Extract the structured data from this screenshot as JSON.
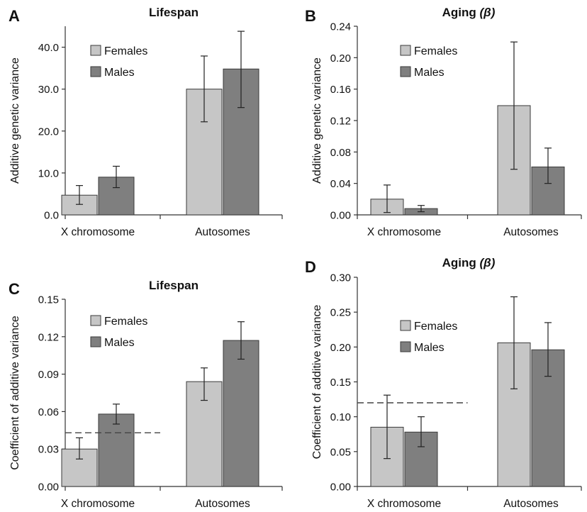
{
  "chart_data": [
    {
      "panel": "A",
      "type": "bar",
      "title": "Lifespan",
      "ylabel": "Additive genetic variance",
      "categories": [
        "X chromosome",
        "Autosomes"
      ],
      "ylim": [
        0,
        45
      ],
      "yticks": [
        0.0,
        10.0,
        20.0,
        30.0,
        40.0
      ],
      "ytick_labels": [
        "0.0",
        "10.0",
        "20.0",
        "30.0",
        "40.0"
      ],
      "series": [
        {
          "name": "Females",
          "color": "#c6c6c6",
          "values": [
            4.7,
            30.0
          ],
          "err_low": [
            2.5,
            22.2
          ],
          "err_high": [
            7.0,
            37.9
          ]
        },
        {
          "name": "Males",
          "color": "#7f7f7f",
          "values": [
            9.0,
            34.8
          ],
          "err_low": [
            6.5,
            25.6
          ],
          "err_high": [
            11.6,
            43.8
          ]
        }
      ],
      "legend": "top-left",
      "ref_line": null
    },
    {
      "panel": "B",
      "type": "bar",
      "title_main": "Aging",
      "title_greek": "(β)",
      "ylabel": "Additive genetic variance",
      "categories": [
        "X chromosome",
        "Autosomes"
      ],
      "ylim": [
        0,
        0.24
      ],
      "yticks": [
        0.0,
        0.04,
        0.08,
        0.12,
        0.16,
        0.2,
        0.24
      ],
      "ytick_labels": [
        "0.00",
        "0.04",
        "0.08",
        "0.12",
        "0.16",
        "0.20",
        "0.24"
      ],
      "series": [
        {
          "name": "Females",
          "color": "#c6c6c6",
          "values": [
            0.02,
            0.139
          ],
          "err_low": [
            0.003,
            0.058
          ],
          "err_high": [
            0.038,
            0.22
          ]
        },
        {
          "name": "Males",
          "color": "#7f7f7f",
          "values": [
            0.008,
            0.061
          ],
          "err_low": [
            0.004,
            0.04
          ],
          "err_high": [
            0.012,
            0.085
          ]
        }
      ],
      "legend": "top-left",
      "ref_line": null
    },
    {
      "panel": "C",
      "type": "bar",
      "title": "Lifespan",
      "ylabel": "Coefficient of additive variance",
      "categories": [
        "X chromosome",
        "Autosomes"
      ],
      "ylim": [
        0,
        0.15
      ],
      "yticks": [
        0.0,
        0.03,
        0.06,
        0.09,
        0.12,
        0.15
      ],
      "ytick_labels": [
        "0.00",
        "0.03",
        "0.06",
        "0.09",
        "0.12",
        "0.15"
      ],
      "series": [
        {
          "name": "Females",
          "color": "#c6c6c6",
          "values": [
            0.03,
            0.084
          ],
          "err_low": [
            0.022,
            0.069
          ],
          "err_high": [
            0.039,
            0.095
          ]
        },
        {
          "name": "Males",
          "color": "#7f7f7f",
          "values": [
            0.058,
            0.117
          ],
          "err_low": [
            0.05,
            0.102
          ],
          "err_high": [
            0.066,
            0.132
          ]
        }
      ],
      "legend": "top-left",
      "ref_line": 0.043
    },
    {
      "panel": "D",
      "type": "bar",
      "title_main": "Aging",
      "title_greek": "(β)",
      "ylabel": "Coefficient of additive variance",
      "categories": [
        "X chromosome",
        "Autosomes"
      ],
      "ylim": [
        0,
        0.3
      ],
      "yticks": [
        0.0,
        0.05,
        0.1,
        0.15,
        0.2,
        0.25,
        0.3
      ],
      "ytick_labels": [
        "0.00",
        "0.05",
        "0.10",
        "0.15",
        "0.20",
        "0.25",
        "0.30"
      ],
      "series": [
        {
          "name": "Females",
          "color": "#c6c6c6",
          "values": [
            0.085,
            0.206
          ],
          "err_low": [
            0.04,
            0.14
          ],
          "err_high": [
            0.131,
            0.272
          ]
        },
        {
          "name": "Males",
          "color": "#7f7f7f",
          "values": [
            0.078,
            0.196
          ],
          "err_low": [
            0.057,
            0.158
          ],
          "err_high": [
            0.1,
            0.235
          ]
        }
      ],
      "legend": "top-left",
      "ref_line": 0.12
    }
  ]
}
